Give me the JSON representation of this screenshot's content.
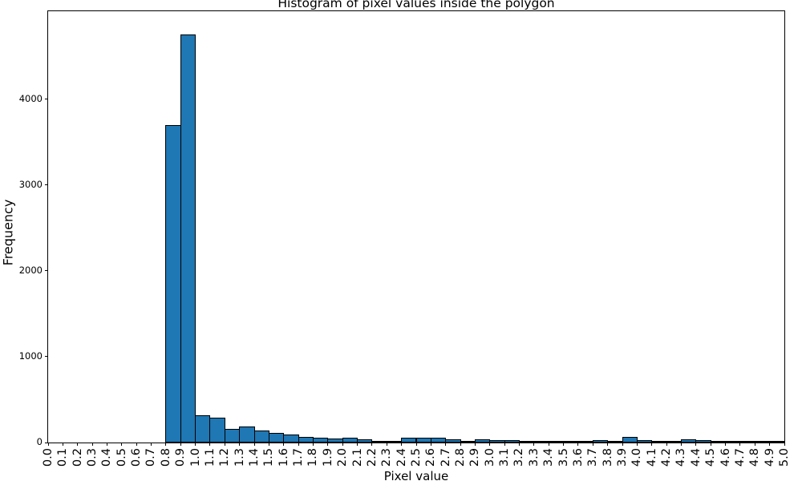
{
  "chart_data": {
    "type": "bar",
    "title": "Histogram of pixel values inside the polygon",
    "xlabel": "Pixel value",
    "ylabel": "Frequency",
    "bin_start": 0.0,
    "bin_width": 0.1,
    "values": [
      0,
      0,
      0,
      0,
      0,
      0,
      0,
      0,
      3700,
      4760,
      320,
      290,
      160,
      190,
      140,
      112,
      90,
      70,
      58,
      50,
      60,
      38,
      20,
      20,
      56,
      56,
      56,
      35,
      10,
      40,
      28,
      28,
      15,
      8,
      5,
      8,
      8,
      25,
      22,
      65,
      25,
      12,
      19,
      40,
      26,
      9,
      6,
      6,
      6,
      9
    ],
    "xtick_labels": [
      "0.0",
      "0.1",
      "0.2",
      "0.3",
      "0.4",
      "0.5",
      "0.6",
      "0.7",
      "0.8",
      "0.9",
      "1.0",
      "1.1",
      "1.2",
      "1.3",
      "1.4",
      "1.5",
      "1.6",
      "1.7",
      "1.8",
      "1.9",
      "2.0",
      "2.1",
      "2.2",
      "2.3",
      "2.4",
      "2.5",
      "2.6",
      "2.7",
      "2.8",
      "2.9",
      "3.0",
      "3.1",
      "3.2",
      "3.3",
      "3.4",
      "3.5",
      "3.6",
      "3.7",
      "3.8",
      "3.9",
      "4.0",
      "4.1",
      "4.2",
      "4.3",
      "4.4",
      "4.5",
      "4.6",
      "4.7",
      "4.8",
      "4.9",
      "5.0"
    ],
    "ytick_values": [
      0,
      1000,
      2000,
      3000,
      4000
    ],
    "ytick_labels": [
      "0",
      "1000",
      "2000",
      "3000",
      "4000"
    ],
    "xlim": [
      0.0,
      5.0
    ],
    "ylim": [
      0,
      5028
    ],
    "x_tick_rotation": 90,
    "grid": false,
    "legend": "none",
    "bar_color": "#1f77b4",
    "bar_edge_color": "#000000",
    "background_color": "#ffffff",
    "text_color": "#000000"
  }
}
